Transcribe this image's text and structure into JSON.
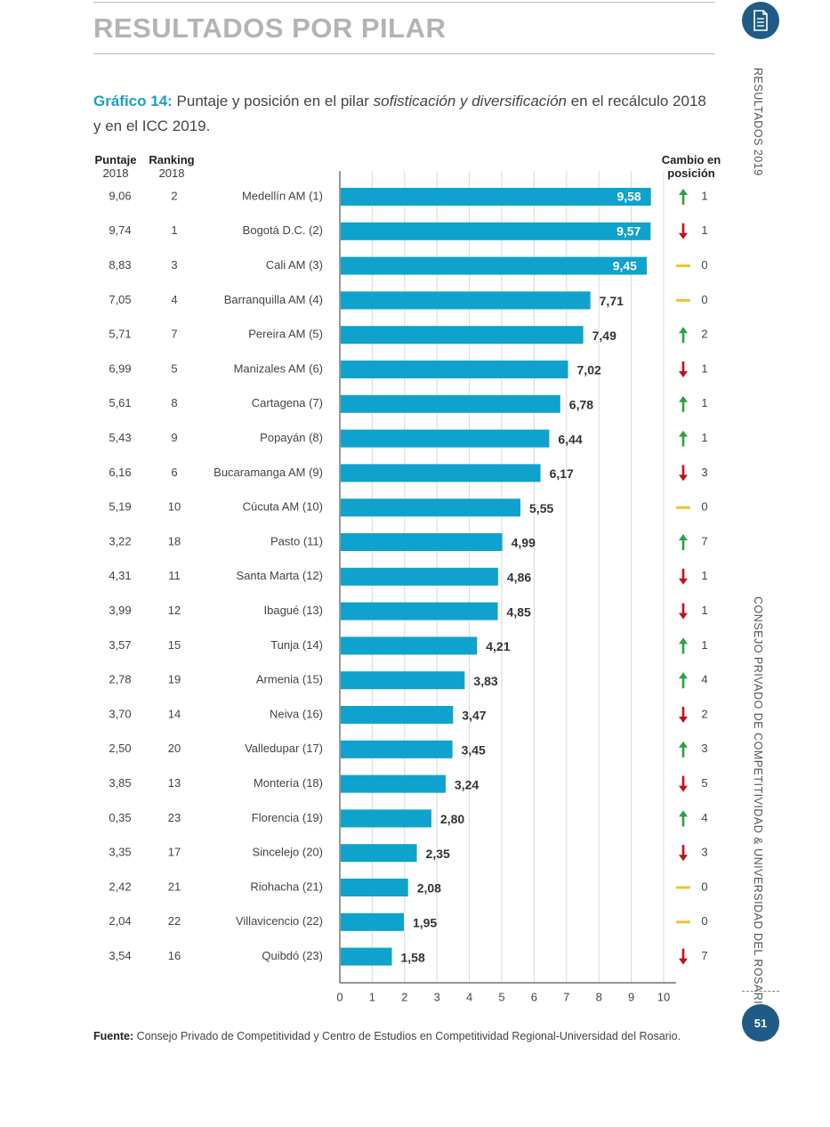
{
  "header": {
    "section_title": "RESULTADOS POR PILAR"
  },
  "side": {
    "top_label": "RESULTADOS   2019",
    "bottom_label": "CONSEJO PRIVADO DE COMPETITIVIDAD & UNIVERSIDAD DEL ROSARIO"
  },
  "caption": {
    "lead": "Gráfico 14:",
    "text_before": " Puntaje y posición en el pilar ",
    "text_italic": "sofisticación y diversificación",
    "text_after": " en el recálculo 2018 y en el ICC 2019."
  },
  "columns": {
    "puntaje_title": "Puntaje",
    "puntaje_year": "2018",
    "ranking_title": "Ranking",
    "ranking_year": "2018",
    "cambio_title": "Cambio en",
    "cambio_sub": "posición"
  },
  "icons": [
    "document-icon",
    "arrow-up-icon",
    "arrow-down-icon",
    "dash-icon"
  ],
  "colors": {
    "bar": "#0fa2cc",
    "up": "#2e9f47",
    "down": "#c1121f",
    "same": "#f2c230",
    "circle": "#1f5b86",
    "accent": "#1aa0c8"
  },
  "chart_data": {
    "type": "bar",
    "orientation": "horizontal",
    "xlim": [
      0,
      10
    ],
    "x_ticks": [
      "0",
      "1",
      "2",
      "3",
      "4",
      "5",
      "6",
      "7",
      "8",
      "9",
      "10"
    ],
    "categories": [
      "Medellín AM (1)",
      "Bogotá D.C. (2)",
      "Cali AM (3)",
      "Barranquilla AM (4)",
      "Pereira AM (5)",
      "Manizales AM (6)",
      "Cartagena (7)",
      "Popayán (8)",
      "Bucaramanga AM (9)",
      "Cúcuta AM (10)",
      "Pasto (11)",
      "Santa Marta (12)",
      "Ibagué (13)",
      "Tunja (14)",
      "Armenia (15)",
      "Neiva (16)",
      "Valledupar (17)",
      "Montería (18)",
      "Florencia (19)",
      "Sincelejo (20)",
      "Riohacha (21)",
      "Villavicencio (22)",
      "Quibdó (23)"
    ],
    "values": [
      9.58,
      9.57,
      9.45,
      7.71,
      7.49,
      7.02,
      6.78,
      6.44,
      6.17,
      5.55,
      4.99,
      4.86,
      4.85,
      4.21,
      3.83,
      3.47,
      3.45,
      3.24,
      2.8,
      2.35,
      2.08,
      1.95,
      1.58
    ],
    "value_labels": [
      "9,58",
      "9,57",
      "9,45",
      "7,71",
      "7,49",
      "7,02",
      "6,78",
      "6,44",
      "6,17",
      "5,55",
      "4,99",
      "4,86",
      "4,85",
      "4,21",
      "3,83",
      "3,47",
      "3,45",
      "3,24",
      "2,80",
      "2,35",
      "2,08",
      "1,95",
      "1,58"
    ],
    "puntaje_2018": [
      "9,06",
      "9,74",
      "8,83",
      "7,05",
      "5,71",
      "6,99",
      "5,61",
      "5,43",
      "6,16",
      "5,19",
      "3,22",
      "4,31",
      "3,99",
      "3,57",
      "2,78",
      "3,70",
      "2,50",
      "3,85",
      "0,35",
      "3,35",
      "2,42",
      "2,04",
      "3,54"
    ],
    "ranking_2018": [
      "2",
      "1",
      "3",
      "4",
      "7",
      "5",
      "8",
      "9",
      "6",
      "10",
      "18",
      "11",
      "12",
      "15",
      "19",
      "14",
      "20",
      "13",
      "23",
      "17",
      "21",
      "22",
      "16"
    ],
    "change_direction": [
      "up",
      "down",
      "same",
      "same",
      "up",
      "down",
      "up",
      "up",
      "down",
      "same",
      "up",
      "down",
      "down",
      "up",
      "up",
      "down",
      "up",
      "down",
      "up",
      "down",
      "same",
      "same",
      "down"
    ],
    "change_value": [
      "1",
      "1",
      "0",
      "0",
      "2",
      "1",
      "1",
      "1",
      "3",
      "0",
      "7",
      "1",
      "1",
      "1",
      "4",
      "2",
      "3",
      "5",
      "4",
      "3",
      "0",
      "0",
      "7"
    ],
    "grid": true
  },
  "footer": {
    "source_label": "Fuente:",
    "source_text": " Consejo Privado de Competitividad y Centro de Estudios en Competitividad Regional-Universidad del Rosario.",
    "page_number": "51"
  }
}
